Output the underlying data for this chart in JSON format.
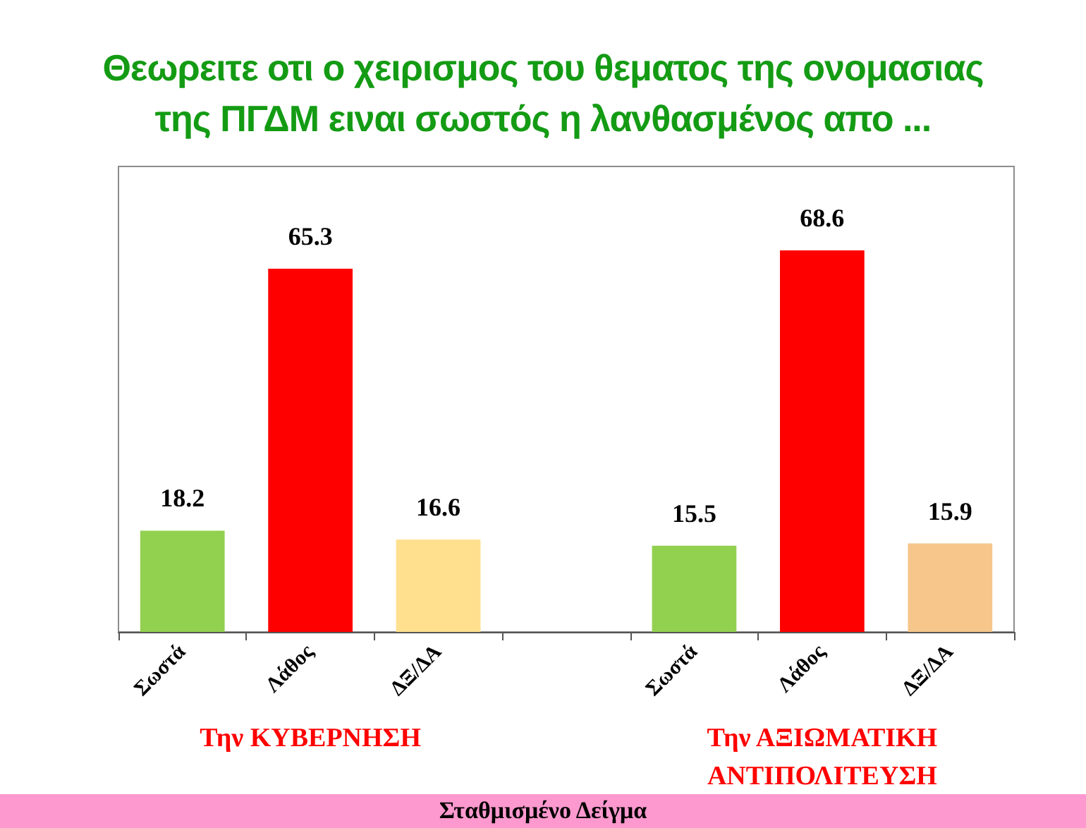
{
  "chart_data": {
    "type": "bar",
    "title": "Θεωρειτε οτι ο χειρισμος του θεματος της ονομασιας της ΠΓΔΜ ειναι σωστός η λανθασμένος απο ...",
    "categories": [
      "Σωστά",
      "Λάθος",
      "ΔΞ/ΔΑ",
      null,
      "Σωστά",
      "Λάθος",
      "ΔΞ/ΔΑ"
    ],
    "values": [
      18.2,
      65.3,
      16.6,
      null,
      15.5,
      68.6,
      15.9
    ],
    "colors": [
      "#92d050",
      "#ff0000",
      "#ffe08f",
      null,
      "#92d050",
      "#ff0000",
      "#f6c68a"
    ],
    "data_labels": true,
    "annotations": [
      "Την ΚΥΒΕΡΝΗΣΗ",
      "Την ΑΞΙΩΜΑΤΙΚΗ ΑΝΤΙΠΟΛΙΤΕΥΣΗ",
      "Σταθμισμένο Δείγμα"
    ]
  }
}
